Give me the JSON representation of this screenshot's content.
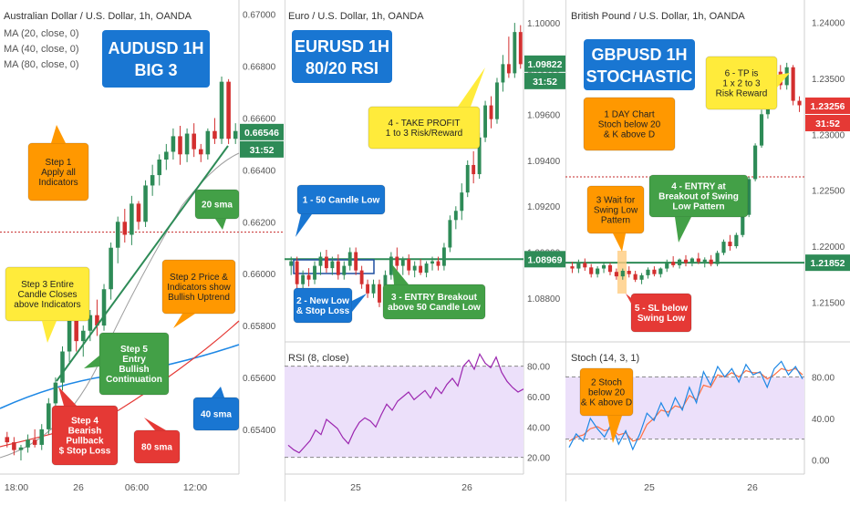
{
  "chart_data": [
    {
      "type": "candlestick",
      "title": "Australian Dollar / U.S. Dollar, 1h, OANDA",
      "indicators": [
        "MA (20, close, 0)",
        "MA (40, close, 0)",
        "MA (80, close, 0)"
      ],
      "banner": [
        "AUDUSD 1H",
        "BIG 3"
      ],
      "y_ticks": [
        "0.67000",
        "0.66800",
        "0.66600",
        "0.66400",
        "0.66200",
        "0.66000",
        "0.65800",
        "0.65600",
        "0.65400"
      ],
      "ylim": [
        0.6528,
        0.6702
      ],
      "x_ticks": [
        "18:00",
        "26",
        "06:00",
        "12:00"
      ],
      "price_tag": "0.66546",
      "time_tag": "31:52",
      "resistance_level": 0.6616,
      "candles": [
        [
          0.6537,
          0.6539,
          0.6533,
          0.6535
        ],
        [
          0.6535,
          0.6537,
          0.653,
          0.6532
        ],
        [
          0.6532,
          0.6534,
          0.6528,
          0.6533
        ],
        [
          0.6533,
          0.6538,
          0.6531,
          0.6536
        ],
        [
          0.6536,
          0.654,
          0.6533,
          0.6534
        ],
        [
          0.6534,
          0.6542,
          0.6532,
          0.654
        ],
        [
          0.654,
          0.6552,
          0.6538,
          0.655
        ],
        [
          0.655,
          0.656,
          0.6546,
          0.6558
        ],
        [
          0.6558,
          0.6572,
          0.6555,
          0.657
        ],
        [
          0.657,
          0.6585,
          0.6566,
          0.6582
        ],
        [
          0.6582,
          0.6586,
          0.657,
          0.6574
        ],
        [
          0.6574,
          0.658,
          0.6568,
          0.6578
        ],
        [
          0.6578,
          0.6586,
          0.6574,
          0.6584
        ],
        [
          0.6584,
          0.659,
          0.6576,
          0.658
        ],
        [
          0.658,
          0.6596,
          0.6578,
          0.6594
        ],
        [
          0.6594,
          0.6612,
          0.659,
          0.661
        ],
        [
          0.661,
          0.6622,
          0.6604,
          0.662
        ],
        [
          0.662,
          0.6625,
          0.6612,
          0.6615
        ],
        [
          0.6615,
          0.663,
          0.6611,
          0.6627
        ],
        [
          0.6627,
          0.6628,
          0.6617,
          0.662
        ],
        [
          0.662,
          0.6636,
          0.6618,
          0.6634
        ],
        [
          0.6634,
          0.6642,
          0.663,
          0.6638
        ],
        [
          0.6638,
          0.6646,
          0.6634,
          0.6644
        ],
        [
          0.6644,
          0.665,
          0.664,
          0.6647
        ],
        [
          0.6647,
          0.6656,
          0.6644,
          0.6653
        ],
        [
          0.6653,
          0.6657,
          0.6642,
          0.6646
        ],
        [
          0.6646,
          0.6656,
          0.6643,
          0.6654
        ],
        [
          0.6654,
          0.6658,
          0.6645,
          0.6648
        ],
        [
          0.6648,
          0.665,
          0.6643,
          0.6646
        ],
        [
          0.6646,
          0.6656,
          0.6644,
          0.6655
        ],
        [
          0.6655,
          0.666,
          0.665,
          0.6652
        ],
        [
          0.6652,
          0.6676,
          0.665,
          0.6674
        ],
        [
          0.6674,
          0.6675,
          0.665,
          0.6652
        ],
        [
          0.6652,
          0.6658,
          0.665,
          0.6655
        ]
      ],
      "annotations": [
        "Step 1\nApply all\nIndicators",
        "Step 3 Entire\nCandle Closes\nabove Indicators",
        "Step 2 Price &\nIndicators show\nBullish Uptrend",
        "Step 5\nEntry\nBullish\nContinuation",
        "Step 4\nBearish\nPullback\n$ Stop Loss",
        "20 sma",
        "40 sma",
        "80 sma"
      ]
    },
    {
      "type": "candlestick",
      "title": "Euro / U.S. Dollar, 1h, OANDA",
      "banner": [
        "EURUSD 1H",
        "80/20 RSI"
      ],
      "y_ticks": [
        "1.10000",
        "1.09800",
        "1.09600",
        "1.09400",
        "1.09200",
        "1.09000",
        "1.08800"
      ],
      "ylim": [
        1.0866,
        1.1006
      ],
      "x_ticks": [
        "25",
        "26"
      ],
      "price_tag": "1.09822",
      "time_tag": "31:52",
      "entry_tag": "1.08969",
      "entry_level": 1.08969,
      "candles": [
        [
          1.0894,
          1.0898,
          1.089,
          1.0896
        ],
        [
          1.0896,
          1.0898,
          1.0884,
          1.0886
        ],
        [
          1.0886,
          1.0892,
          1.0884,
          1.089
        ],
        [
          1.089,
          1.0893,
          1.0885,
          1.0888
        ],
        [
          1.0888,
          1.0896,
          1.0886,
          1.0894
        ],
        [
          1.0894,
          1.09,
          1.089,
          1.0898
        ],
        [
          1.0898,
          1.0901,
          1.0891,
          1.0893
        ],
        [
          1.0893,
          1.0898,
          1.089,
          1.0896
        ],
        [
          1.0896,
          1.0899,
          1.0888,
          1.089
        ],
        [
          1.089,
          1.0896,
          1.0888,
          1.0894
        ],
        [
          1.0894,
          1.0902,
          1.0892,
          1.09
        ],
        [
          1.09,
          1.0902,
          1.089,
          1.0892
        ],
        [
          1.0892,
          1.0894,
          1.0884,
          1.0886
        ],
        [
          1.0886,
          1.0888,
          1.088,
          1.0882
        ],
        [
          1.0882,
          1.0888,
          1.088,
          1.0886
        ],
        [
          1.0886,
          1.0888,
          1.0876,
          1.0878
        ],
        [
          1.0878,
          1.0892,
          1.0877,
          1.089
        ],
        [
          1.089,
          1.09,
          1.0888,
          1.0898
        ],
        [
          1.0898,
          1.0902,
          1.0892,
          1.0894
        ],
        [
          1.0894,
          1.0898,
          1.089,
          1.0897
        ],
        [
          1.0897,
          1.0899,
          1.089,
          1.0892
        ],
        [
          1.0892,
          1.0896,
          1.0889,
          1.0894
        ],
        [
          1.0894,
          1.0897,
          1.089,
          1.0891
        ],
        [
          1.0891,
          1.0896,
          1.0889,
          1.0895
        ],
        [
          1.0895,
          1.0898,
          1.0892,
          1.0896
        ],
        [
          1.0896,
          1.0898,
          1.0892,
          1.0894
        ],
        [
          1.0894,
          1.0904,
          1.0892,
          1.0902
        ],
        [
          1.0902,
          1.0916,
          1.09,
          1.0914
        ],
        [
          1.0914,
          1.092,
          1.091,
          1.0918
        ],
        [
          1.0918,
          1.093,
          1.0914,
          1.0926
        ],
        [
          1.0926,
          1.094,
          1.0924,
          1.0938
        ],
        [
          1.0938,
          1.0944,
          1.093,
          1.0934
        ],
        [
          1.0934,
          1.0952,
          1.0932,
          1.095
        ],
        [
          1.095,
          1.0966,
          1.0948,
          1.0964
        ],
        [
          1.0964,
          1.0968,
          1.0954,
          1.0958
        ],
        [
          1.0958,
          1.0976,
          1.0956,
          1.0974
        ],
        [
          1.0974,
          1.0986,
          1.097,
          1.0982
        ],
        [
          1.0982,
          1.0994,
          1.0976,
          1.0978
        ],
        [
          1.0978,
          1.1,
          1.0976,
          1.0996
        ],
        [
          1.0996,
          1.0999,
          1.098,
          1.0982
        ]
      ],
      "annotations": [
        "1 - 50 Candle Low",
        "2 - New Low\n& Stop Loss",
        "3 - ENTRY Breakout\nabove 50 Candle Low",
        "4 - TAKE PROFIT\n1 to 3 Risk/Reward"
      ],
      "oscillator": {
        "title": "RSI (8, close)",
        "y_ticks": [
          "80.00",
          "60.00",
          "40.00",
          "20.00"
        ],
        "ylim": [
          15,
          90
        ],
        "band": [
          20,
          80
        ],
        "values": [
          28,
          25,
          23,
          27,
          31,
          38,
          35,
          45,
          42,
          39,
          33,
          29,
          37,
          43,
          46,
          44,
          40,
          48,
          55,
          51,
          57,
          60,
          63,
          58,
          61,
          64,
          59,
          66,
          62,
          68,
          72,
          67,
          80,
          84,
          78,
          88,
          82,
          79,
          86,
          76,
          70,
          66,
          63,
          65
        ]
      }
    },
    {
      "type": "candlestick",
      "title": "British Pound / U.S. Dollar, 1h, OANDA",
      "banner": [
        "GBPUSD 1H",
        "STOCHASTIC"
      ],
      "y_ticks": [
        "1.24000",
        "1.23500",
        "1.23000",
        "1.22500",
        "1.22000",
        "1.21500"
      ],
      "ylim": [
        1.2125,
        1.2412
      ],
      "x_ticks": [
        "25",
        "26"
      ],
      "price_tag": "1.23256",
      "time_tag": "31:52",
      "entry_tag": "1.21852",
      "entry_level": 1.21852,
      "stop_level": 1.2262,
      "candles": [
        [
          1.2182,
          1.2186,
          1.2176,
          1.218
        ],
        [
          1.218,
          1.2188,
          1.2176,
          1.2185
        ],
        [
          1.2185,
          1.2189,
          1.2178,
          1.2181
        ],
        [
          1.2181,
          1.2184,
          1.2172,
          1.2175
        ],
        [
          1.2175,
          1.2182,
          1.2172,
          1.218
        ],
        [
          1.218,
          1.2186,
          1.2176,
          1.2183
        ],
        [
          1.2183,
          1.2185,
          1.2174,
          1.2177
        ],
        [
          1.2177,
          1.218,
          1.217,
          1.2173
        ],
        [
          1.2173,
          1.218,
          1.217,
          1.2178
        ],
        [
          1.2178,
          1.2182,
          1.2172,
          1.2175
        ],
        [
          1.2175,
          1.2178,
          1.2168,
          1.217
        ],
        [
          1.217,
          1.2176,
          1.2166,
          1.2174
        ],
        [
          1.2174,
          1.2181,
          1.2171,
          1.2179
        ],
        [
          1.2179,
          1.2182,
          1.2173,
          1.2175
        ],
        [
          1.2175,
          1.2181,
          1.2172,
          1.218
        ],
        [
          1.218,
          1.2188,
          1.2177,
          1.2186
        ],
        [
          1.2186,
          1.2191,
          1.2181,
          1.2183
        ],
        [
          1.2183,
          1.2189,
          1.218,
          1.2188
        ],
        [
          1.2188,
          1.2192,
          1.2182,
          1.2185
        ],
        [
          1.2185,
          1.219,
          1.2182,
          1.2189
        ],
        [
          1.2189,
          1.2194,
          1.2184,
          1.2186
        ],
        [
          1.2186,
          1.219,
          1.2181,
          1.2188
        ],
        [
          1.2188,
          1.2192,
          1.2182,
          1.2184
        ],
        [
          1.2184,
          1.2196,
          1.2182,
          1.2194
        ],
        [
          1.2194,
          1.2206,
          1.2192,
          1.2204
        ],
        [
          1.2204,
          1.221,
          1.2196,
          1.22
        ],
        [
          1.22,
          1.2212,
          1.2198,
          1.221
        ],
        [
          1.221,
          1.223,
          1.2208,
          1.2228
        ],
        [
          1.2228,
          1.2262,
          1.2226,
          1.226
        ],
        [
          1.226,
          1.2292,
          1.2258,
          1.229
        ],
        [
          1.229,
          1.2322,
          1.2288,
          1.2318
        ],
        [
          1.2318,
          1.2346,
          1.2314,
          1.2342
        ],
        [
          1.2342,
          1.2364,
          1.2336,
          1.2356
        ],
        [
          1.2356,
          1.2362,
          1.234,
          1.2344
        ],
        [
          1.2344,
          1.2364,
          1.234,
          1.236
        ],
        [
          1.236,
          1.2362,
          1.2326,
          1.233
        ],
        [
          1.233,
          1.2334,
          1.232,
          1.2326
        ]
      ],
      "annotations": [
        "1 DAY Chart\nStoch below 20\n& K above D",
        "3 Wait for\nSwing Low\nPattern",
        "4 - ENTRY at\nBreakout of Swing\nLow Pattern",
        "5 - SL below\nSwing Low",
        "6 - TP is\n1 x 2 to 3\nRisk Reward",
        "2 Stoch\nbelow 20\n& K above D"
      ],
      "oscillator": {
        "title": "Stoch (14, 3, 1)",
        "y_ticks": [
          "80.00",
          "40.00",
          "0.00"
        ],
        "ylim": [
          -5,
          105
        ],
        "band": [
          20,
          80
        ],
        "k_values": [
          12,
          25,
          18,
          40,
          30,
          22,
          35,
          15,
          28,
          10,
          25,
          45,
          38,
          55,
          42,
          60,
          48,
          70,
          55,
          85,
          72,
          90,
          80,
          88,
          75,
          92,
          82,
          85,
          70,
          88,
          95,
          82,
          90,
          78
        ],
        "d_values": [
          18,
          22,
          24,
          30,
          32,
          28,
          30,
          24,
          26,
          18,
          20,
          34,
          40,
          48,
          46,
          52,
          50,
          62,
          58,
          72,
          70,
          82,
          80,
          84,
          80,
          86,
          84,
          84,
          78,
          82,
          88,
          86,
          88,
          82
        ]
      }
    }
  ]
}
